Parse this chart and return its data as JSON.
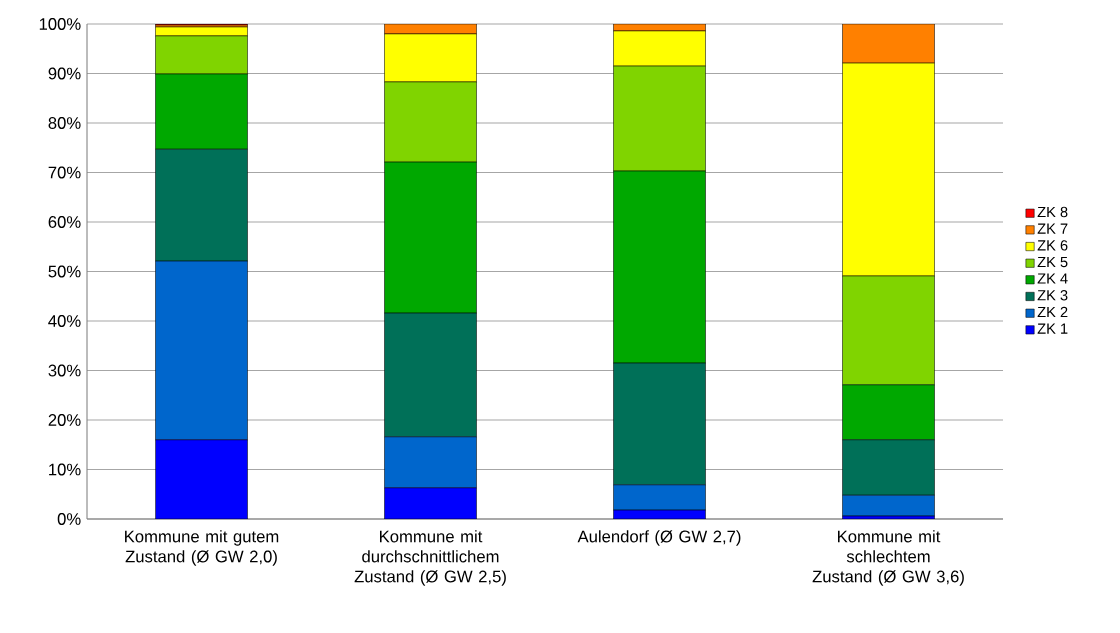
{
  "chart_data": {
    "type": "bar",
    "stacked": true,
    "grid": "y",
    "legend": "right",
    "categories": [
      "Kommune mit gutem Zustand (Ø GW 2,0)",
      "Kommune mit durchschnittlichem Zustand (Ø GW 2,5)",
      "Aulendorf (Ø GW 2,7)",
      "Kommune mit schlechtem Zustand (Ø GW 3,6)"
    ],
    "ylim": [
      0,
      100
    ],
    "yticks": [
      {
        "value": 0,
        "label": "0%"
      },
      {
        "value": 10,
        "label": "10%"
      },
      {
        "value": 20,
        "label": "20%"
      },
      {
        "value": 30,
        "label": "30%"
      },
      {
        "value": 40,
        "label": "40%"
      },
      {
        "value": 50,
        "label": "50%"
      },
      {
        "value": 60,
        "label": "60%"
      },
      {
        "value": 70,
        "label": "70%"
      },
      {
        "value": 80,
        "label": "80%"
      },
      {
        "value": 90,
        "label": "90%"
      },
      {
        "value": 100,
        "label": "100%"
      }
    ],
    "series": [
      {
        "name": "ZK 1",
        "color": "#0000ff",
        "values": [
          16.0,
          6.3,
          1.8,
          0.6
        ]
      },
      {
        "name": "ZK 2",
        "color": "#0066cc",
        "values": [
          36.1,
          10.3,
          5.1,
          4.2
        ]
      },
      {
        "name": "ZK 3",
        "color": "#007058",
        "values": [
          22.6,
          25.0,
          24.6,
          11.2
        ]
      },
      {
        "name": "ZK 4",
        "color": "#00a800",
        "values": [
          15.2,
          30.5,
          38.8,
          11.1
        ]
      },
      {
        "name": "ZK 5",
        "color": "#80d400",
        "values": [
          7.7,
          16.2,
          21.2,
          22.0
        ]
      },
      {
        "name": "ZK 6",
        "color": "#ffff00",
        "values": [
          1.8,
          9.7,
          7.1,
          43.0
        ]
      },
      {
        "name": "ZK 7",
        "color": "#ff8000",
        "values": [
          0.4,
          2.0,
          1.4,
          7.9
        ]
      },
      {
        "name": "ZK 8",
        "color": "#ff0000",
        "values": [
          0.2,
          0,
          0,
          0
        ]
      }
    ]
  }
}
